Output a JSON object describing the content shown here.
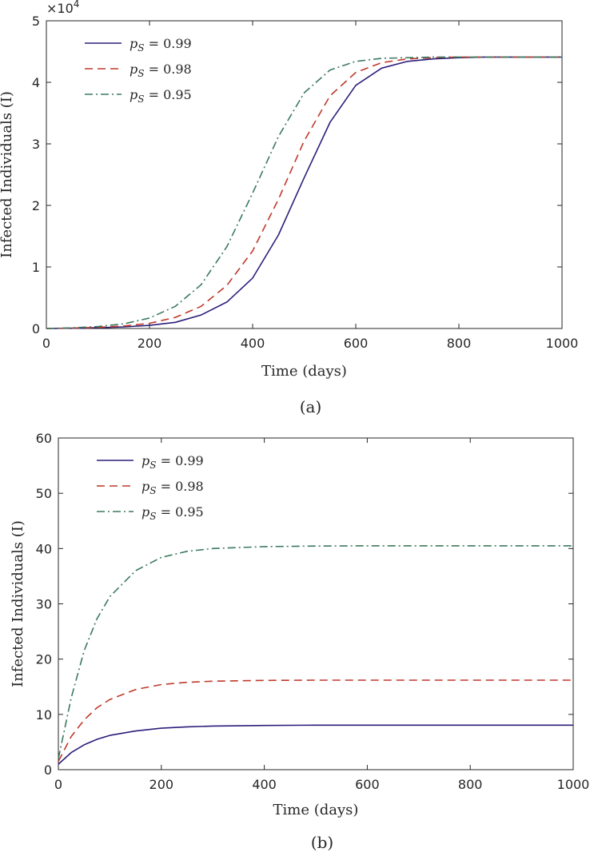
{
  "chart_data": [
    {
      "type": "line",
      "caption": "(a)",
      "xlabel": "Time (days)",
      "ylabel": "Infected Individuals (I)",
      "y_multiplier": "×10",
      "y_multiplier_exp": "4",
      "xlim": [
        0,
        1000
      ],
      "ylim": [
        0,
        50000
      ],
      "xticks": [
        0,
        200,
        400,
        600,
        800,
        1000
      ],
      "yticks": [
        0,
        10000,
        20000,
        30000,
        40000,
        50000
      ],
      "ytick_labels": [
        "0",
        "1",
        "2",
        "3",
        "4",
        "5"
      ],
      "xtick_labels": [
        "0",
        "200",
        "400",
        "600",
        "800",
        "1000"
      ],
      "grid": false,
      "legend_position": "top-left",
      "x": [
        0,
        50,
        100,
        150,
        200,
        250,
        300,
        350,
        400,
        450,
        500,
        550,
        600,
        650,
        700,
        750,
        800,
        850,
        900,
        950,
        1000
      ],
      "series": [
        {
          "name": "p_S = 0.99",
          "legend_sym": "p",
          "legend_sub": "S",
          "legend_val": " = 0.99",
          "color": "#2b1f7a",
          "dash": "solid",
          "values": [
            0,
            40,
            120,
            260,
            500,
            1000,
            2200,
            4300,
            8200,
            15200,
            24500,
            33500,
            39500,
            42300,
            43400,
            43800,
            44000,
            44100,
            44100,
            44100,
            44100
          ]
        },
        {
          "name": "p_S = 0.98",
          "legend_sym": "p",
          "legend_sub": "S",
          "legend_val": " = 0.98",
          "color": "#c0392b",
          "dash": "dashed",
          "values": [
            0,
            60,
            180,
            400,
            850,
            1800,
            3600,
            7000,
            12600,
            21000,
            30500,
            37800,
            41600,
            43200,
            43800,
            44000,
            44100,
            44100,
            44100,
            44100,
            44100
          ]
        },
        {
          "name": "p_S = 0.95",
          "legend_sym": "p",
          "legend_sub": "S",
          "legend_val": " = 0.95",
          "color": "#3d7a5e",
          "dash": "dashdot",
          "values": [
            0,
            100,
            320,
            750,
            1700,
            3600,
            7100,
            13300,
            22000,
            31200,
            38300,
            42000,
            43400,
            43900,
            44000,
            44100,
            44100,
            44100,
            44100,
            44100,
            44100
          ]
        }
      ]
    },
    {
      "type": "line",
      "caption": "(b)",
      "xlabel": "Time (days)",
      "ylabel": "Infected Individuals (I)",
      "xlim": [
        0,
        1000
      ],
      "ylim": [
        0,
        60
      ],
      "xticks": [
        0,
        200,
        400,
        600,
        800,
        1000
      ],
      "yticks": [
        0,
        10,
        20,
        30,
        40,
        50,
        60
      ],
      "ytick_labels": [
        "0",
        "10",
        "20",
        "30",
        "40",
        "50",
        "60"
      ],
      "xtick_labels": [
        "0",
        "200",
        "400",
        "600",
        "800",
        "1000"
      ],
      "grid": false,
      "legend_position": "top-left",
      "x": [
        0,
        25,
        50,
        75,
        100,
        150,
        200,
        250,
        300,
        400,
        500,
        600,
        700,
        800,
        900,
        1000
      ],
      "series": [
        {
          "name": "p_S = 0.99",
          "legend_sym": "p",
          "legend_sub": "S",
          "legend_val": " = 0.99",
          "color": "#2b1f7a",
          "dash": "solid",
          "values": [
            1,
            3.1,
            4.5,
            5.5,
            6.2,
            7.0,
            7.5,
            7.75,
            7.9,
            8.0,
            8.05,
            8.05,
            8.05,
            8.05,
            8.05,
            8.05
          ]
        },
        {
          "name": "p_S = 0.98",
          "legend_sym": "p",
          "legend_sub": "S",
          "legend_val": " = 0.98",
          "color": "#c0392b",
          "dash": "dashed",
          "values": [
            1.5,
            6.0,
            9.0,
            11.2,
            12.7,
            14.5,
            15.4,
            15.8,
            16.0,
            16.15,
            16.2,
            16.2,
            16.2,
            16.2,
            16.2,
            16.2
          ]
        },
        {
          "name": "p_S = 0.95",
          "legend_sym": "p",
          "legend_sub": "S",
          "legend_val": " = 0.95",
          "color": "#3d7a5e",
          "dash": "dashdot",
          "values": [
            2,
            13,
            21.5,
            27.3,
            31.3,
            36.0,
            38.4,
            39.5,
            40.0,
            40.35,
            40.45,
            40.5,
            40.5,
            40.5,
            40.5,
            40.5
          ]
        }
      ]
    }
  ]
}
